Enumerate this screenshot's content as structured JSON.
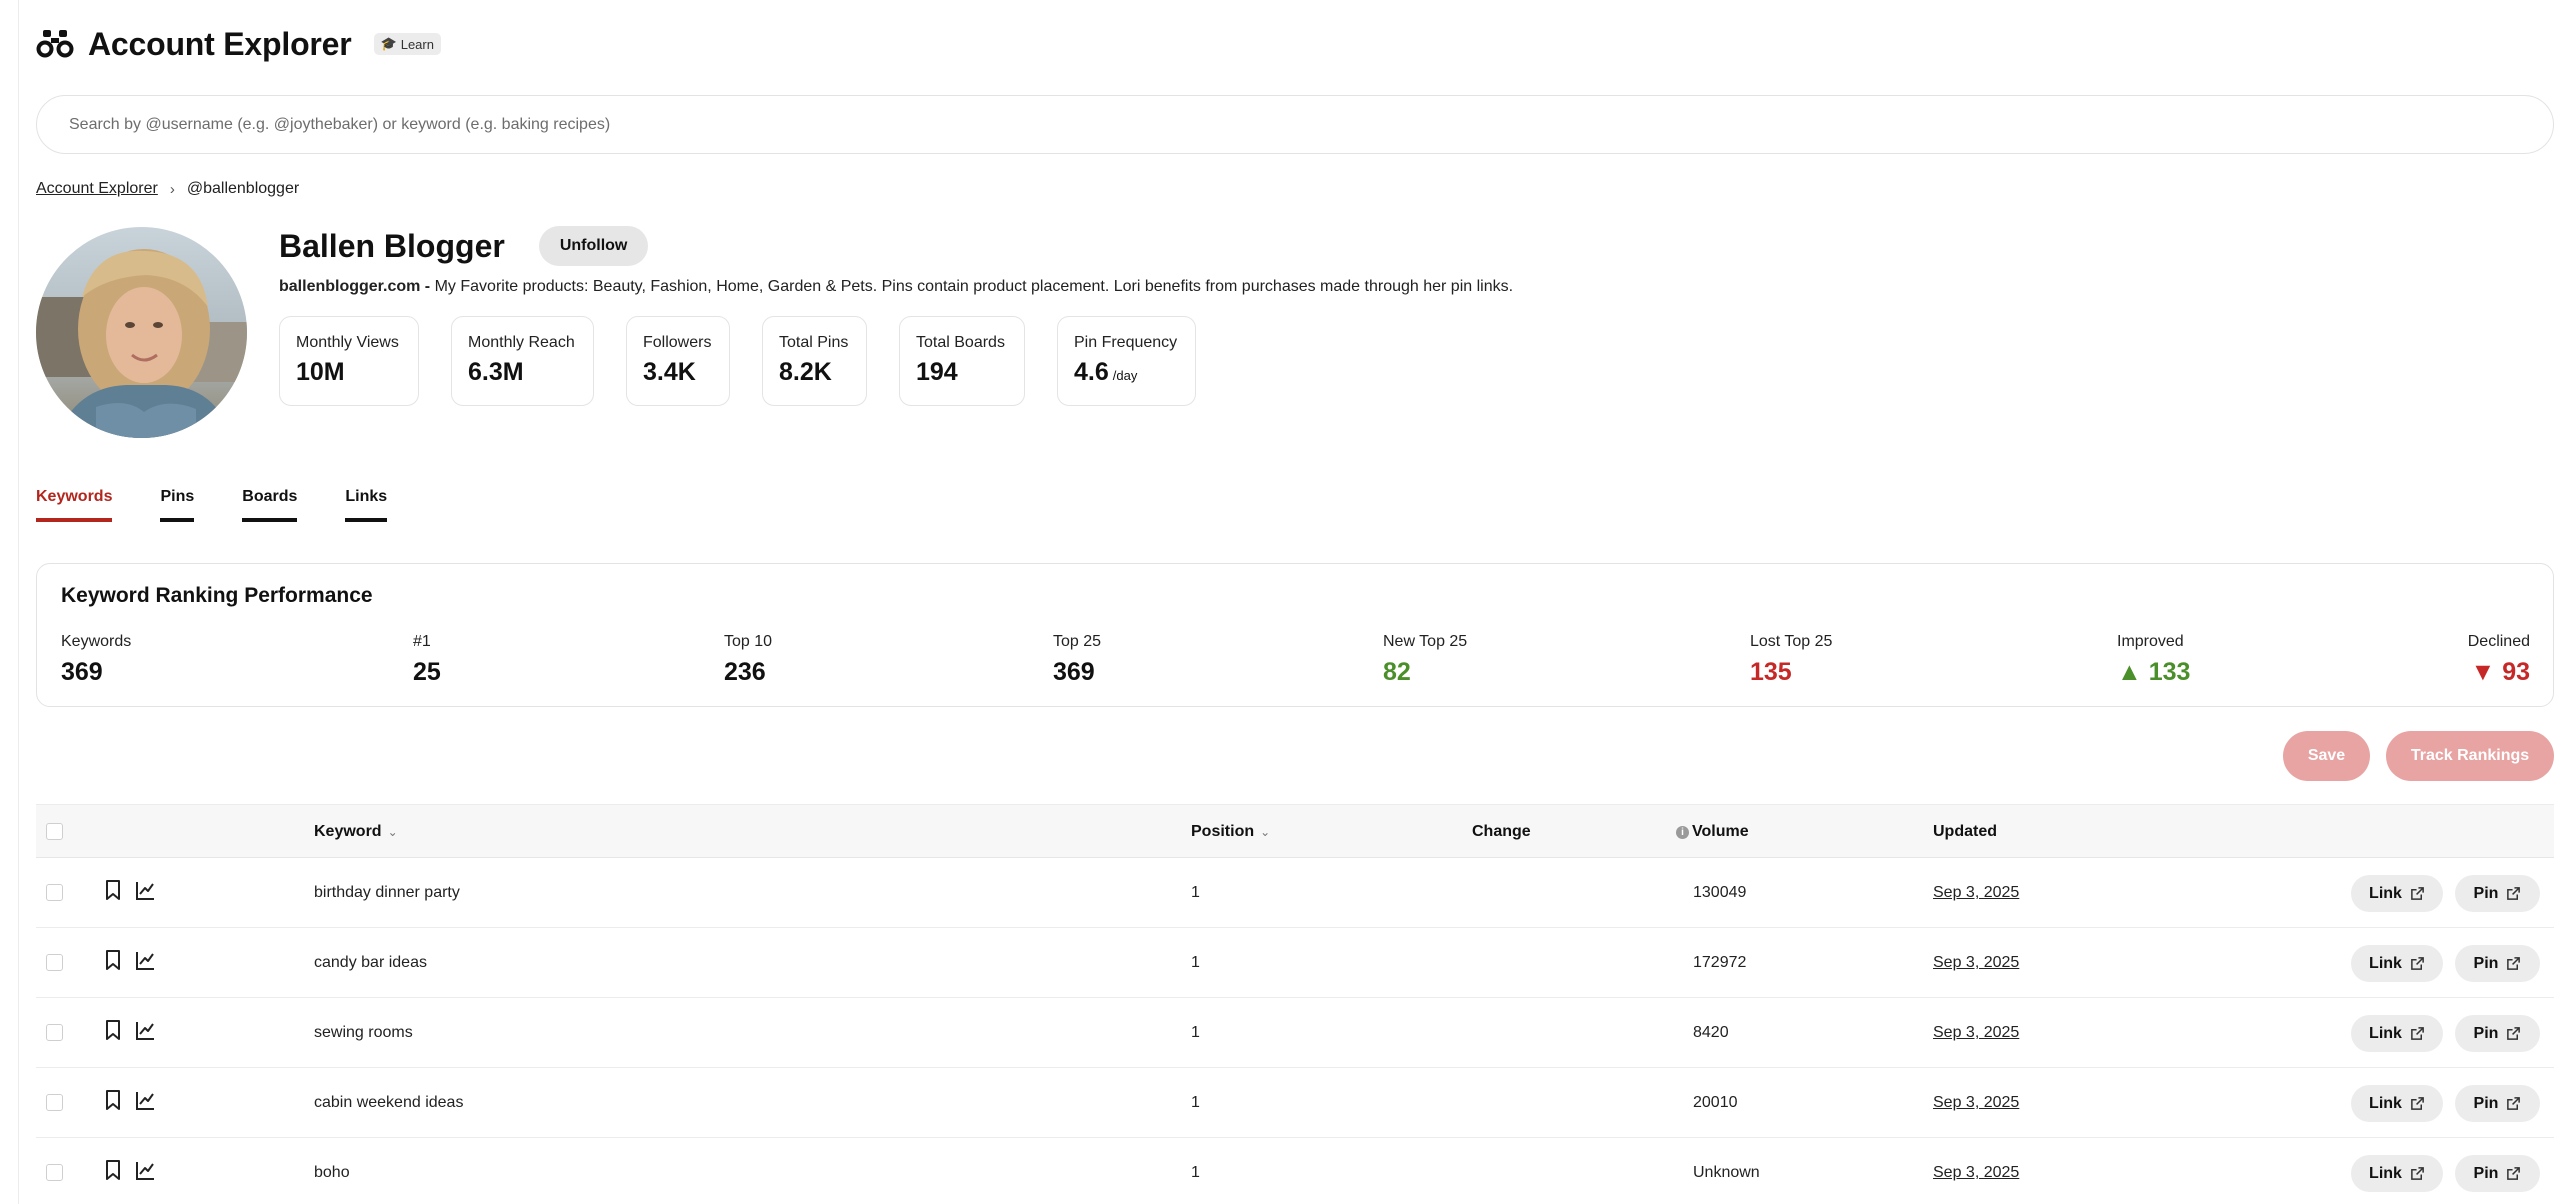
{
  "header": {
    "title": "Account Explorer",
    "learn_label": "Learn",
    "binoculars_icon": "binoculars-icon",
    "learn_icon": "graduation-cap-icon"
  },
  "search": {
    "placeholder": "Search by @username (e.g. @joythebaker) or keyword (e.g. baking recipes)"
  },
  "breadcrumb": {
    "root": "Account Explorer",
    "current": "@ballenblogger"
  },
  "profile": {
    "name": "Ballen Blogger",
    "unfollow_label": "Unfollow",
    "site": "ballenblogger.com -",
    "bio": "My Favorite products: Beauty, Fashion, Home, Garden & Pets. Pins contain product placement. Lori benefits from purchases made through her pin links.",
    "stats": [
      {
        "label": "Monthly Views",
        "value": "10M"
      },
      {
        "label": "Monthly Reach",
        "value": "6.3M"
      },
      {
        "label": "Followers",
        "value": "3.4K"
      },
      {
        "label": "Total Pins",
        "value": "8.2K"
      },
      {
        "label": "Total Boards",
        "value": "194"
      },
      {
        "label": "Pin Frequency",
        "value": "4.6",
        "unit": "/day"
      }
    ]
  },
  "tabs": [
    {
      "label": "Keywords",
      "active": true
    },
    {
      "label": "Pins",
      "active": false
    },
    {
      "label": "Boards",
      "active": false
    },
    {
      "label": "Links",
      "active": false
    }
  ],
  "performance": {
    "title": "Keyword Ranking Performance",
    "metrics": [
      {
        "label": "Keywords",
        "value": "369"
      },
      {
        "label": "#1",
        "value": "25"
      },
      {
        "label": "Top 10",
        "value": "236"
      },
      {
        "label": "Top 25",
        "value": "369"
      },
      {
        "label": "New Top 25",
        "value": "82"
      },
      {
        "label": "Lost Top 25",
        "value": "135"
      },
      {
        "label": "Improved",
        "value": "▲ 133"
      },
      {
        "label": "Declined",
        "value": "▼ 93"
      }
    ],
    "colors": {
      "positive": "#4a8f2a",
      "negative": "#c62828"
    }
  },
  "actions": {
    "save_label": "Save",
    "track_label": "Track Rankings"
  },
  "table": {
    "columns": {
      "keyword": "Keyword",
      "position": "Position",
      "change": "Change",
      "volume": "Volume",
      "updated": "Updated"
    },
    "link_label": "Link",
    "pin_label": "Pin",
    "rows": [
      {
        "keyword": "birthday dinner party",
        "position": "1",
        "change": "",
        "volume": "130049",
        "updated": "Sep 3, 2025"
      },
      {
        "keyword": "candy bar ideas",
        "position": "1",
        "change": "",
        "volume": "172972",
        "updated": "Sep 3, 2025"
      },
      {
        "keyword": "sewing rooms",
        "position": "1",
        "change": "",
        "volume": "8420",
        "updated": "Sep 3, 2025"
      },
      {
        "keyword": "cabin weekend ideas",
        "position": "1",
        "change": "",
        "volume": "20010",
        "updated": "Sep 3, 2025"
      },
      {
        "keyword": "boho",
        "position": "1",
        "change": "",
        "volume": "Unknown",
        "updated": "Sep 3, 2025"
      }
    ]
  },
  "accent_color": "#b3261e"
}
